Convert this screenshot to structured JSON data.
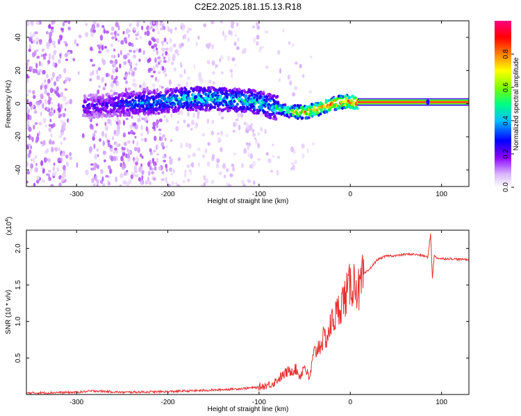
{
  "title": "C2E2.2025.181.15.13.R18",
  "chart_data": [
    {
      "type": "heatmap",
      "xlabel": "Height of straight line (km)",
      "ylabel": "Frequency (Hz)",
      "xlim": [
        -355,
        130
      ],
      "ylim": [
        -50,
        50
      ],
      "xticks": [
        "-300",
        "-200",
        "-100",
        "0",
        "100"
      ],
      "xtick_values": [
        -300,
        -200,
        -100,
        0,
        100
      ],
      "yticks": [
        "-40",
        "-20",
        "0",
        "20",
        "40"
      ],
      "ytick_values": [
        -40,
        -20,
        0,
        20,
        40
      ],
      "colorbar": {
        "label": "Normalized spectral amplitude",
        "range": [
          0,
          1
        ],
        "ticks": [
          "0.0",
          "0.2",
          "0.4",
          "0.6",
          "0.8"
        ],
        "tick_values": [
          0,
          0.2,
          0.4,
          0.6,
          0.8
        ],
        "colors": [
          "#ffffff",
          "#d9b3ff",
          "#8a00ff",
          "#0000ff",
          "#00ffff",
          "#00ff00",
          "#ffff00",
          "#ff8000",
          "#ff0000",
          "#ff0080"
        ]
      },
      "ridge": {
        "x": [
          -290,
          -270,
          -240,
          -210,
          -180,
          -150,
          -120,
          -100,
          -85,
          -70,
          -60,
          -50,
          -40,
          -30,
          -20,
          -10,
          0,
          10,
          130
        ],
        "frequency": [
          -2,
          -1,
          0,
          1,
          3,
          3,
          2,
          1,
          -2,
          -4,
          -5,
          -5,
          -4,
          -2,
          0,
          1,
          1,
          1,
          1
        ],
        "amplitude": [
          0.3,
          0.3,
          0.4,
          0.45,
          0.5,
          0.5,
          0.5,
          0.5,
          0.5,
          0.55,
          0.75,
          0.8,
          0.8,
          0.85,
          0.85,
          0.9,
          0.9,
          0.95,
          0.95
        ]
      }
    },
    {
      "type": "line",
      "xlabel": "Height of straight line (km)",
      "ylabel": "SNR (10 * v/v)",
      "y_multiplier": "(x10^4)",
      "y_multiplier_base": "(x10",
      "y_multiplier_exp": "4",
      "xlim": [
        -355,
        130
      ],
      "ylim": [
        0,
        2.25
      ],
      "xticks": [
        "-300",
        "-200",
        "-100",
        "0",
        "100"
      ],
      "xtick_values": [
        -300,
        -200,
        -100,
        0,
        100
      ],
      "yticks": [
        "0.5",
        "1.0",
        "1.5",
        "2.0"
      ],
      "ytick_values": [
        0.5,
        1.0,
        1.5,
        2.0
      ],
      "color": "#e83030",
      "series": [
        {
          "x": [
            -355,
            -300,
            -280,
            -250,
            -200,
            -150,
            -120,
            -100,
            -85,
            -70,
            -60,
            -55,
            -50,
            -45,
            -40,
            -35,
            -30,
            -25,
            -20,
            -15,
            -10,
            -5,
            0,
            5,
            10,
            15,
            20,
            30,
            40,
            50,
            60,
            70,
            80,
            85,
            88,
            90,
            92,
            95,
            100,
            110,
            120,
            130
          ],
          "y": [
            0.02,
            0.03,
            0.05,
            0.03,
            0.04,
            0.06,
            0.08,
            0.1,
            0.15,
            0.3,
            0.35,
            0.25,
            0.4,
            0.2,
            0.55,
            0.65,
            0.75,
            0.8,
            1.0,
            1.1,
            1.25,
            1.35,
            1.5,
            1.55,
            1.4,
            1.65,
            1.7,
            1.85,
            1.9,
            1.9,
            1.92,
            1.92,
            1.9,
            1.88,
            2.2,
            1.6,
            1.9,
            1.87,
            1.86,
            1.86,
            1.85,
            1.85
          ]
        }
      ]
    }
  ]
}
